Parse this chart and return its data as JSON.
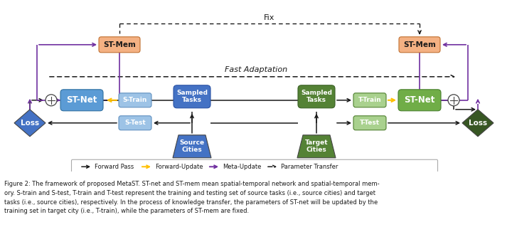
{
  "fig_width": 7.2,
  "fig_height": 3.19,
  "dpi": 100,
  "background": "#ffffff",
  "colors": {
    "blue_stnet": "#5B9BD5",
    "green_stnet": "#70AD47",
    "orange_stmem": "#F4B183",
    "blue_strain": "#9DC3E6",
    "green_ttrain": "#A9D18E",
    "blue_tasks": "#4472C4",
    "green_tasks": "#548235",
    "blue_diamond": "#4472C4",
    "green_diamond": "#375623",
    "arrow_black": "#1a1a1a",
    "arrow_orange": "#FFC000",
    "arrow_purple": "#7030A0",
    "circle_fill": "#ffffff",
    "circle_edge": "#404040"
  },
  "caption_line1": "Figure 2: The framework of proposed MetaST. ST-net and ST-mem mean spatial-temporal network and spatial-temporal mem-",
  "caption_line2": "ory. S-train and S-test, T-train and T-test represent the training and testing set of source tasks (i.e., source cities) and target",
  "caption_line3": "tasks (i.e., source cities), respectively. In the process of knowledge transfer, the parameters of ST-net will be updated by the",
  "caption_line4": "training set in target city (i.e., T-train), while the parameters of ST-mem are fixed."
}
